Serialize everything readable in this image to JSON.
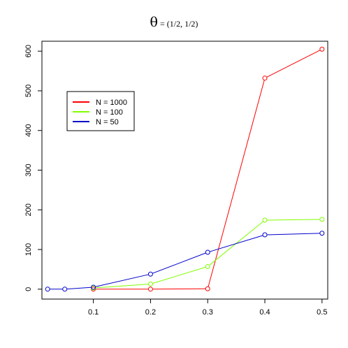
{
  "chart_data": {
    "type": "line",
    "title_symbol": "θ",
    "title_text": " = (1/2, 1/2)",
    "xlabel": "",
    "ylabel": "",
    "xlim": [
      0.01,
      0.51
    ],
    "ylim": [
      -25,
      625
    ],
    "x_ticks": [
      0.1,
      0.2,
      0.3,
      0.4,
      0.5
    ],
    "x_tick_labels": [
      "0.1",
      "0.2",
      "0.3",
      "0.4",
      "0.5"
    ],
    "y_ticks": [
      0,
      100,
      200,
      300,
      400,
      500,
      600
    ],
    "y_tick_labels": [
      "0",
      "100",
      "200",
      "300",
      "400",
      "500",
      "600"
    ],
    "grid": false,
    "legend_position": "upper-left",
    "series": [
      {
        "name": "N = 1000",
        "color": "#ff0000",
        "x": [
          0.1,
          0.2,
          0.3,
          0.4,
          0.5
        ],
        "y": [
          0,
          0,
          1,
          532,
          605
        ]
      },
      {
        "name": "N = 100",
        "color": "#80ff00",
        "x": [
          0.1,
          0.2,
          0.3,
          0.4,
          0.5
        ],
        "y": [
          3,
          13,
          57,
          174,
          176
        ]
      },
      {
        "name": "N = 50",
        "color": "#0000cc",
        "x": [
          0.02,
          0.05,
          0.1,
          0.2,
          0.3,
          0.4,
          0.5
        ],
        "y": [
          0,
          0,
          5,
          38,
          93,
          137,
          141
        ]
      }
    ]
  }
}
